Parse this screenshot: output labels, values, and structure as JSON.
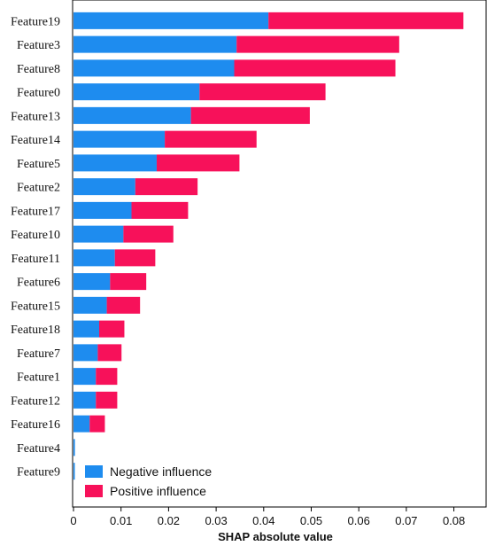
{
  "chart_data": {
    "type": "bar",
    "orientation": "horizontal",
    "stacked": true,
    "categories": [
      "Feature19",
      "Feature3",
      "Feature8",
      "Feature0",
      "Feature13",
      "Feature14",
      "Feature5",
      "Feature2",
      "Feature17",
      "Feature10",
      "Feature11",
      "Feature6",
      "Feature15",
      "Feature18",
      "Feature7",
      "Feature1",
      "Feature12",
      "Feature16",
      "Feature4",
      "Feature9"
    ],
    "series": [
      {
        "name": "Negative influence",
        "color": "#1e8cef",
        "values": [
          0.041,
          0.0343,
          0.0338,
          0.0265,
          0.0247,
          0.0192,
          0.0175,
          0.013,
          0.0122,
          0.0105,
          0.0087,
          0.0077,
          0.007,
          0.0054,
          0.0051,
          0.0047,
          0.0047,
          0.0034,
          0.0003,
          0.0001
        ]
      },
      {
        "name": "Positive influence",
        "color": "#f7115a",
        "values": [
          0.041,
          0.0342,
          0.0339,
          0.0265,
          0.025,
          0.0193,
          0.0174,
          0.0131,
          0.0119,
          0.0105,
          0.0085,
          0.0076,
          0.007,
          0.0053,
          0.005,
          0.0045,
          0.0045,
          0.0032,
          0.0,
          0.0
        ]
      }
    ],
    "xlabel": "SHAP absolute value",
    "xlim": [
      0,
      0.085
    ],
    "xticks": [
      "0",
      "0.01",
      "0.02",
      "0.03",
      "0.04",
      "0.05",
      "0.06",
      "0.07",
      "0.08"
    ],
    "legend_position": "bottom-left"
  }
}
